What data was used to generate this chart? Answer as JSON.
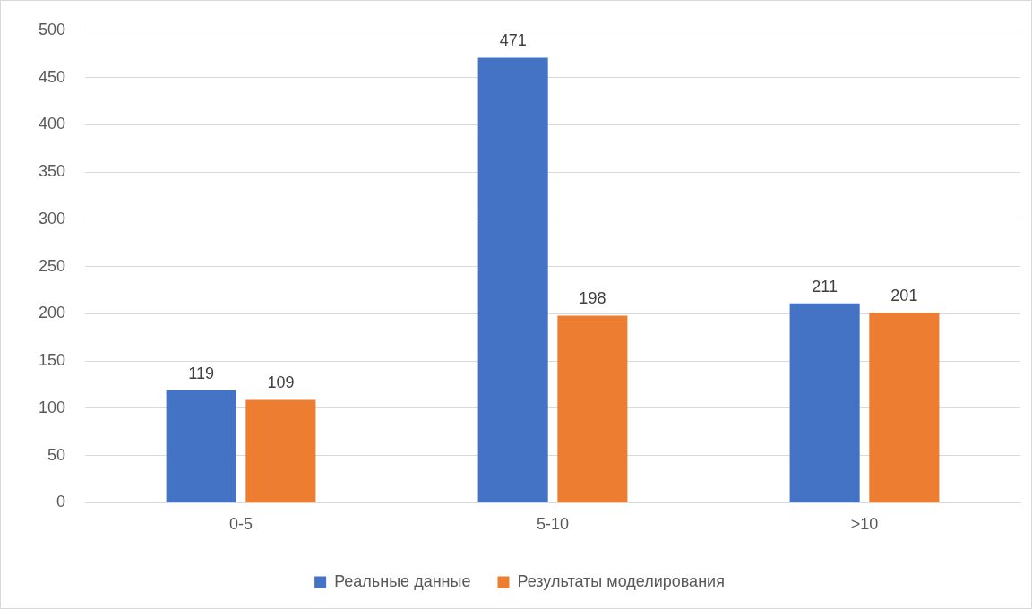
{
  "chart_data": {
    "type": "bar",
    "categories": [
      "0-5",
      "5-10",
      ">10"
    ],
    "series": [
      {
        "name": "Реальные данные",
        "color": "#4472c4",
        "values": [
          119,
          471,
          211
        ]
      },
      {
        "name": "Результаты моделирования",
        "color": "#ed7d31",
        "values": [
          109,
          198,
          201
        ]
      }
    ],
    "ylim": [
      0,
      500
    ],
    "yticks": [
      0,
      50,
      100,
      150,
      200,
      250,
      300,
      350,
      400,
      450,
      500
    ],
    "grid": "y",
    "legend": "bottom",
    "data_labels": true
  }
}
